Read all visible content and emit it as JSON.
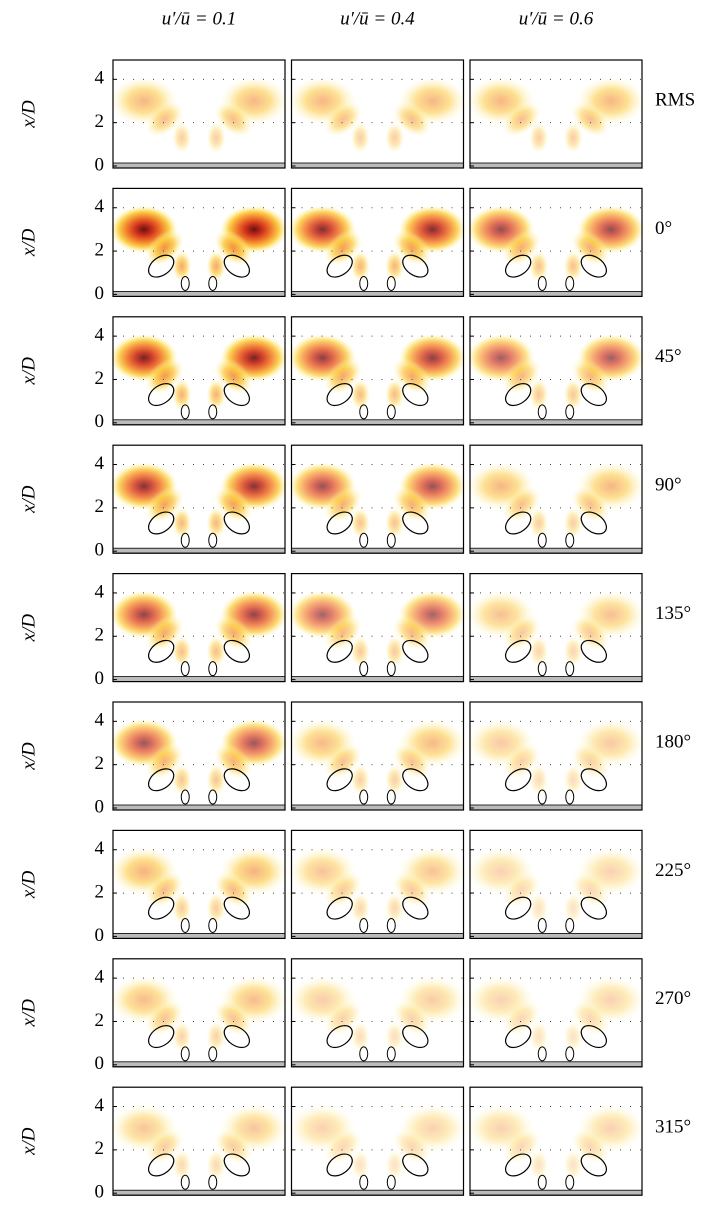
{
  "chart_data": {
    "type": "heatmap-grid",
    "columns": [
      "u′/ū = 0.1",
      "u′/ū = 0.4",
      "u′/ū = 0.6"
    ],
    "rows": [
      "RMS",
      "0°",
      "45°",
      "90°",
      "135°",
      "180°",
      "225°",
      "270°",
      "315°"
    ],
    "ylabel": "x/D",
    "ylim": [
      0,
      4.8
    ],
    "yticks": [
      0,
      2,
      4
    ],
    "grid": true
  }
}
